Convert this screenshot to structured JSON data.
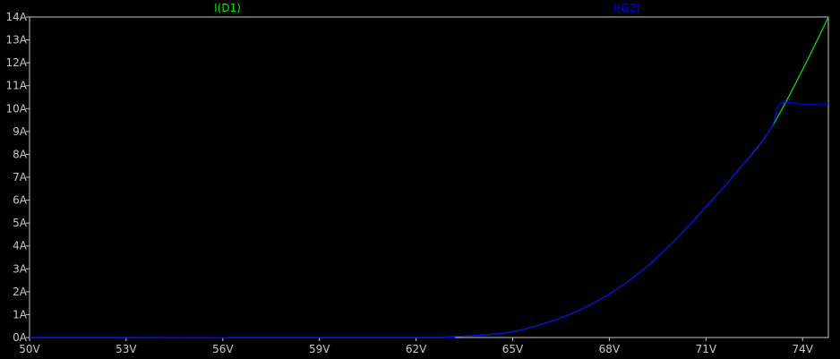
{
  "chart_data": {
    "type": "line",
    "background": "#000000",
    "axis_color": "#c8c8c8",
    "grid": false,
    "legend_placement": "top",
    "xlim": [
      50,
      74.8
    ],
    "ylim": [
      0,
      14
    ],
    "x_ticks": [
      50,
      53,
      56,
      59,
      62,
      65,
      68,
      71,
      74
    ],
    "x_tick_labels": [
      "50V",
      "53V",
      "56V",
      "59V",
      "62V",
      "65V",
      "68V",
      "71V",
      "74V"
    ],
    "y_ticks": [
      0,
      1,
      2,
      3,
      4,
      5,
      6,
      7,
      8,
      9,
      10,
      11,
      12,
      13,
      14
    ],
    "y_tick_labels": [
      "0A",
      "1A",
      "2A",
      "3A",
      "4A",
      "5A",
      "6A",
      "7A",
      "8A",
      "9A",
      "10A",
      "11A",
      "12A",
      "13A",
      "14A"
    ],
    "series": [
      {
        "name": "I(D1)",
        "color": "#00e600",
        "x": [
          50,
          62,
          63,
          64,
          65,
          66,
          67,
          68,
          69,
          70,
          71,
          72,
          73,
          74,
          74.8
        ],
        "y": [
          0,
          0,
          0.03,
          0.1,
          0.25,
          0.62,
          1.15,
          1.9,
          2.9,
          4.2,
          5.7,
          7.3,
          9.1,
          11.7,
          14
        ]
      },
      {
        "name": "I(G2)",
        "color": "#0000ff",
        "x": [
          50,
          62,
          63,
          64,
          65,
          66,
          67,
          68,
          69,
          70,
          71,
          72,
          73,
          73.3,
          74,
          74.8
        ],
        "y": [
          0,
          0,
          0.03,
          0.1,
          0.25,
          0.62,
          1.15,
          1.9,
          2.9,
          4.2,
          5.7,
          7.3,
          9.1,
          10.2,
          10.2,
          10.2
        ]
      }
    ]
  }
}
